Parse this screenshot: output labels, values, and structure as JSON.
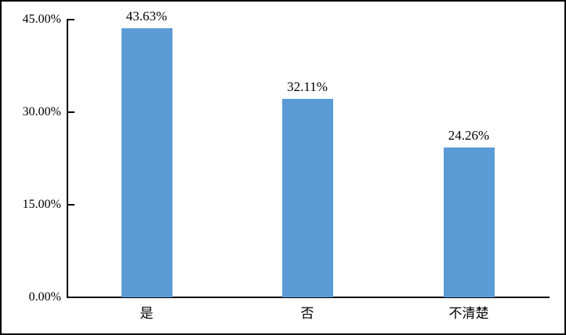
{
  "chart_data": {
    "type": "bar",
    "title": "",
    "categories": [
      "是",
      "否",
      "不清楚"
    ],
    "values": [
      43.63,
      32.11,
      24.26
    ],
    "value_labels": [
      "43.63%",
      "32.11%",
      "24.26%"
    ],
    "y_axis": {
      "range": [
        0,
        45
      ],
      "ticks": [
        {
          "value": 45,
          "label": "45.00%"
        },
        {
          "value": 30,
          "label": "30.00%"
        },
        {
          "value": 15,
          "label": "15.00%"
        },
        {
          "value": 0,
          "label": "0.00%"
        }
      ]
    },
    "grid": false,
    "legend": false,
    "colors": {
      "bar": "#5B9BD5",
      "axis": "#000000",
      "text": "#000000",
      "background": "#FFFFFF",
      "border": "#000000"
    }
  }
}
